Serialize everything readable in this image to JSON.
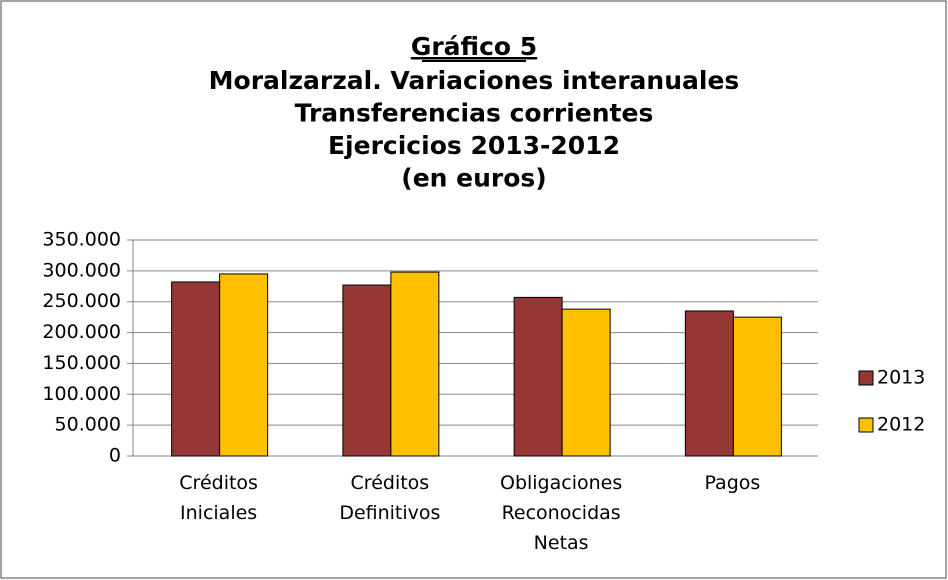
{
  "chart_data": {
    "type": "bar",
    "title": "Gráfico 5",
    "subtitle": [
      "Moralzarzal. Variaciones interanuales",
      "Transferencias corrientes",
      "Ejercicios 2013-2012",
      "(en euros)"
    ],
    "categories": [
      "Créditos Iniciales",
      "Créditos Definitivos",
      "Obligaciones Reconocidas Netas",
      "Pagos"
    ],
    "series": [
      {
        "name": "2013",
        "color": "#953735",
        "values": [
          282000,
          277000,
          257000,
          235000
        ]
      },
      {
        "name": "2012",
        "color": "#ffc000",
        "values": [
          295000,
          298000,
          238000,
          225000
        ]
      }
    ],
    "ylim": [
      0,
      350000
    ],
    "yticks": [
      0,
      {
        "value": 50000,
        "label": "50.000"
      },
      {
        "value": 100000,
        "label": "100.000"
      },
      {
        "value": 150000,
        "label": "150.000"
      },
      {
        "value": 200000,
        "label": "200.000"
      },
      {
        "value": 250000,
        "label": "250.000"
      },
      {
        "value": 300000,
        "label": "300.000"
      },
      {
        "value": 350000,
        "label": "350.000"
      }
    ],
    "grid": true,
    "legend": "right"
  }
}
